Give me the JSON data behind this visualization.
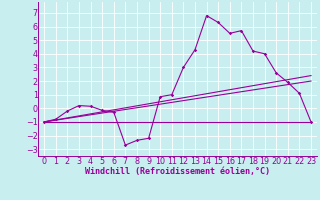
{
  "background_color": "#c8eef0",
  "grid_color": "#ffffff",
  "line_color": "#990099",
  "xlabel": "Windchill (Refroidissement éolien,°C)",
  "xlabel_fontsize": 6.0,
  "tick_fontsize": 5.8,
  "xlim": [
    -0.5,
    23.5
  ],
  "ylim": [
    -3.5,
    7.8
  ],
  "yticks": [
    -3,
    -2,
    -1,
    0,
    1,
    2,
    3,
    4,
    5,
    6,
    7
  ],
  "xticks": [
    0,
    1,
    2,
    3,
    4,
    5,
    6,
    7,
    8,
    9,
    10,
    11,
    12,
    13,
    14,
    15,
    16,
    17,
    18,
    19,
    20,
    21,
    22,
    23
  ],
  "line1_x": [
    0,
    1,
    2,
    3,
    4,
    5,
    6,
    7,
    8,
    9,
    10,
    11,
    12,
    13,
    14,
    15,
    16,
    17,
    18,
    19,
    20,
    21,
    22,
    23
  ],
  "line1_y": [
    -1.0,
    -0.8,
    -0.2,
    0.2,
    0.15,
    -0.15,
    -0.3,
    -2.7,
    -2.35,
    -2.2,
    0.85,
    1.0,
    3.0,
    4.3,
    6.8,
    6.3,
    5.5,
    5.7,
    4.2,
    4.0,
    2.6,
    1.9,
    1.1,
    -1.0
  ],
  "line2_x": [
    0,
    23
  ],
  "line2_y": [
    -1.0,
    2.4
  ],
  "line3_x": [
    0,
    23
  ],
  "line3_y": [
    -1.0,
    2.0
  ],
  "line4_x": [
    0,
    23
  ],
  "line4_y": [
    -1.0,
    -1.0
  ],
  "figsize": [
    3.2,
    2.0
  ],
  "dpi": 100
}
